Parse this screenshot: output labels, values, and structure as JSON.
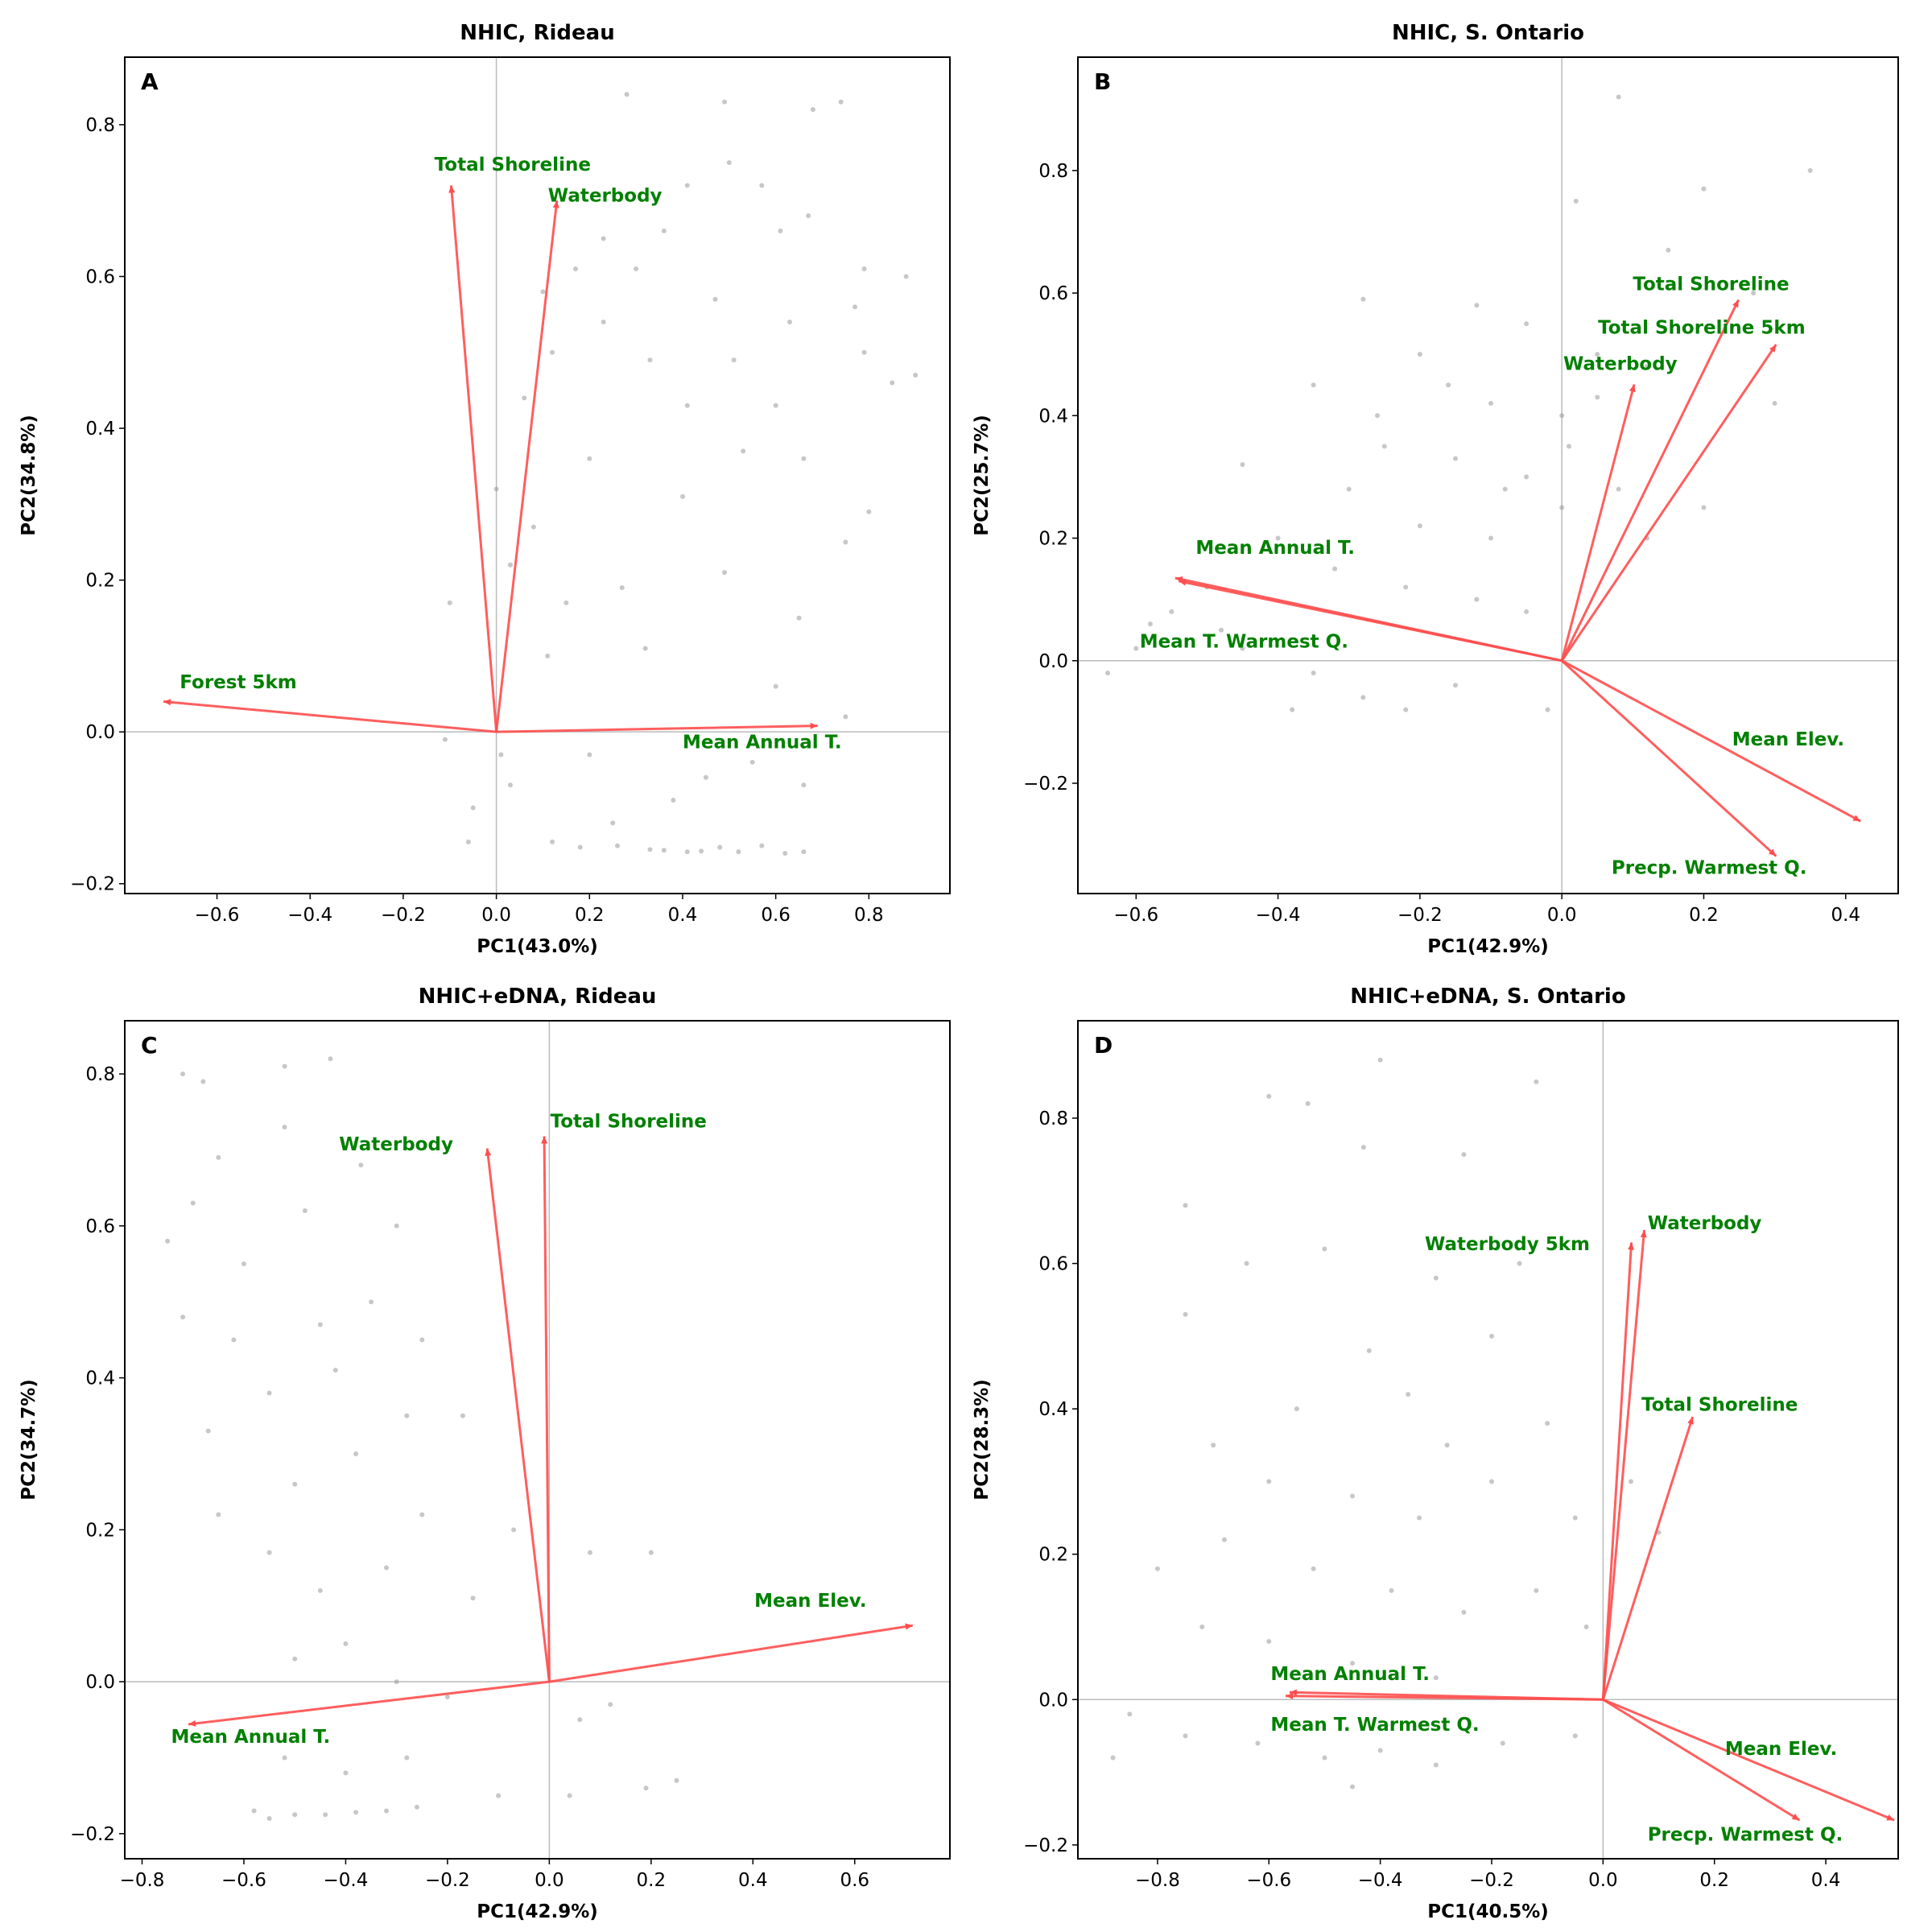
{
  "chart_data": [
    {
      "type": "scatter",
      "panel": "A",
      "title": "NHIC, Rideau",
      "xlabel": "PC1(43.0%)",
      "ylabel": "PC2(34.8%)",
      "xlim": [
        -0.798,
        0.974
      ],
      "ylim": [
        -0.213,
        0.889
      ],
      "xticks": [
        -0.6,
        -0.4,
        -0.2,
        0.0,
        0.2,
        0.4,
        0.6,
        0.8
      ],
      "yticks": [
        -0.2,
        0.0,
        0.2,
        0.4,
        0.6,
        0.8
      ],
      "point_color": "#999999",
      "arrow_color": "#ff4d4d",
      "label_color": "#008000",
      "points": [
        [
          0.28,
          0.84
        ],
        [
          0.49,
          0.83
        ],
        [
          0.74,
          0.83
        ],
        [
          0.68,
          0.82
        ],
        [
          0.5,
          0.75
        ],
        [
          0.41,
          0.72
        ],
        [
          0.57,
          0.72
        ],
        [
          0.67,
          0.68
        ],
        [
          0.36,
          0.66
        ],
        [
          0.61,
          0.66
        ],
        [
          0.17,
          0.61
        ],
        [
          0.3,
          0.61
        ],
        [
          0.88,
          0.6
        ],
        [
          0.79,
          0.61
        ],
        [
          0.47,
          0.57
        ],
        [
          0.23,
          0.54
        ],
        [
          0.63,
          0.54
        ],
        [
          0.77,
          0.56
        ],
        [
          0.12,
          0.5
        ],
        [
          0.51,
          0.49
        ],
        [
          0.79,
          0.5
        ],
        [
          0.9,
          0.47
        ],
        [
          0.85,
          0.46
        ],
        [
          0.33,
          0.49
        ],
        [
          0.06,
          0.44
        ],
        [
          0.41,
          0.43
        ],
        [
          0.6,
          0.43
        ],
        [
          0.2,
          0.36
        ],
        [
          0.53,
          0.37
        ],
        [
          0.66,
          0.36
        ],
        [
          0.8,
          0.29
        ],
        [
          0.08,
          0.27
        ],
        [
          0.4,
          0.31
        ],
        [
          0.75,
          0.25
        ],
        [
          0.03,
          0.22
        ],
        [
          0.27,
          0.19
        ],
        [
          0.49,
          0.21
        ],
        [
          -0.1,
          0.17
        ],
        [
          0.15,
          0.17
        ],
        [
          0.65,
          0.15
        ],
        [
          0.32,
          0.11
        ],
        [
          0.11,
          0.1
        ],
        [
          0.6,
          0.06
        ],
        [
          0.75,
          0.02
        ],
        [
          -0.11,
          -0.01
        ],
        [
          0.45,
          -0.06
        ],
        [
          0.01,
          -0.03
        ],
        [
          0.2,
          -0.03
        ],
        [
          0.55,
          -0.04
        ],
        [
          0.66,
          -0.07
        ],
        [
          0.03,
          -0.07
        ],
        [
          0.38,
          -0.09
        ],
        [
          -0.05,
          -0.1
        ],
        [
          0.25,
          -0.12
        ],
        [
          -0.06,
          -0.145
        ],
        [
          0.12,
          -0.145
        ],
        [
          0.18,
          -0.152
        ],
        [
          0.26,
          -0.15
        ],
        [
          0.33,
          -0.155
        ],
        [
          0.36,
          -0.156
        ],
        [
          0.41,
          -0.158
        ],
        [
          0.44,
          -0.157
        ],
        [
          0.48,
          -0.152
        ],
        [
          0.52,
          -0.158
        ],
        [
          0.57,
          -0.15
        ],
        [
          0.62,
          -0.16
        ],
        [
          0.66,
          -0.158
        ],
        [
          0.0,
          0.32
        ],
        [
          0.1,
          0.58
        ],
        [
          0.23,
          0.65
        ]
      ],
      "loadings": [
        {
          "name": "Total Shoreline",
          "x": -0.097,
          "y": 0.72,
          "label_xy": [
            -0.133,
            0.748
          ]
        },
        {
          "name": "Waterbody",
          "x": 0.13,
          "y": 0.7,
          "label_xy": [
            0.111,
            0.707
          ]
        },
        {
          "name": "Forest 5km",
          "x": -0.715,
          "y": 0.04,
          "label_xy": [
            -0.68,
            0.066
          ]
        },
        {
          "name": "Mean Annual T.",
          "x": 0.69,
          "y": 0.008,
          "label_xy": [
            0.4,
            -0.013
          ]
        }
      ]
    },
    {
      "type": "scatter",
      "panel": "B",
      "title": "NHIC, S. Ontario",
      "xlabel": "PC1(42.9%)",
      "ylabel": "PC2(25.7%)",
      "xlim": [
        -0.682,
        0.474
      ],
      "ylim": [
        -0.38,
        0.985
      ],
      "xticks": [
        -0.6,
        -0.4,
        -0.2,
        0.0,
        0.2,
        0.4
      ],
      "yticks": [
        -0.2,
        0.0,
        0.2,
        0.4,
        0.6,
        0.8
      ],
      "point_color": "#999999",
      "arrow_color": "#ff4d4d",
      "label_color": "#008000",
      "points": [
        [
          0.08,
          0.92
        ],
        [
          0.35,
          0.8
        ],
        [
          0.02,
          0.75
        ],
        [
          0.2,
          0.77
        ],
        [
          -0.28,
          0.59
        ],
        [
          -0.12,
          0.58
        ],
        [
          0.15,
          0.67
        ],
        [
          0.27,
          0.6
        ],
        [
          -0.05,
          0.55
        ],
        [
          0.05,
          0.5
        ],
        [
          0.12,
          0.48
        ],
        [
          -0.35,
          0.45
        ],
        [
          -0.2,
          0.5
        ],
        [
          -0.1,
          0.42
        ],
        [
          0.0,
          0.4
        ],
        [
          0.3,
          0.42
        ],
        [
          -0.25,
          0.35
        ],
        [
          -0.15,
          0.33
        ],
        [
          -0.05,
          0.3
        ],
        [
          0.08,
          0.28
        ],
        [
          -0.45,
          0.32
        ],
        [
          -0.3,
          0.28
        ],
        [
          -0.2,
          0.22
        ],
        [
          -0.1,
          0.2
        ],
        [
          0.0,
          0.25
        ],
        [
          0.12,
          0.2
        ],
        [
          0.2,
          0.25
        ],
        [
          -0.4,
          0.2
        ],
        [
          -0.32,
          0.15
        ],
        [
          -0.22,
          0.12
        ],
        [
          -0.12,
          0.1
        ],
        [
          -0.05,
          0.08
        ],
        [
          -0.5,
          0.12
        ],
        [
          -0.55,
          0.08
        ],
        [
          -0.6,
          0.02
        ],
        [
          -0.64,
          -0.02
        ],
        [
          -0.45,
          0.02
        ],
        [
          -0.35,
          -0.02
        ],
        [
          -0.28,
          -0.06
        ],
        [
          -0.22,
          -0.08
        ],
        [
          -0.15,
          -0.04
        ],
        [
          -0.38,
          -0.08
        ],
        [
          -0.02,
          -0.08
        ],
        [
          -0.48,
          0.05
        ],
        [
          -0.58,
          0.06
        ],
        [
          -0.26,
          0.4
        ],
        [
          -0.16,
          0.45
        ],
        [
          0.01,
          0.35
        ],
        [
          0.05,
          0.43
        ],
        [
          -0.08,
          0.28
        ]
      ],
      "loadings": [
        {
          "name": "Total Shoreline",
          "x": 0.249,
          "y": 0.589,
          "label_xy": [
            0.1,
            0.615
          ]
        },
        {
          "name": "Total Shoreline 5km",
          "x": 0.302,
          "y": 0.516,
          "label_xy": [
            0.051,
            0.544
          ]
        },
        {
          "name": "Waterbody",
          "x": 0.102,
          "y": 0.451,
          "label_xy": [
            0.002,
            0.485
          ]
        },
        {
          "name": "Mean Annual T.",
          "x": -0.545,
          "y": 0.135,
          "label_xy": [
            -0.516,
            0.185
          ]
        },
        {
          "name": "Mean T. Warmest Q.",
          "x": -0.54,
          "y": 0.13,
          "label_xy": [
            -0.595,
            0.032
          ]
        },
        {
          "name": "Mean Elev.",
          "x": 0.421,
          "y": -0.262,
          "label_xy": [
            0.24,
            -0.128
          ]
        },
        {
          "name": "Precp. Warmest Q.",
          "x": 0.302,
          "y": -0.319,
          "label_xy": [
            0.07,
            -0.337
          ]
        }
      ]
    },
    {
      "type": "scatter",
      "panel": "C",
      "title": "NHIC+eDNA, Rideau",
      "xlabel": "PC1(42.9%)",
      "ylabel": "PC2(34.7%)",
      "xlim": [
        -0.834,
        0.787
      ],
      "ylim": [
        -0.233,
        0.87
      ],
      "xticks": [
        -0.8,
        -0.6,
        -0.4,
        -0.2,
        0.0,
        0.2,
        0.4,
        0.6
      ],
      "yticks": [
        -0.2,
        0.0,
        0.2,
        0.4,
        0.6,
        0.8
      ],
      "point_color": "#999999",
      "arrow_color": "#ff4d4d",
      "label_color": "#008000",
      "points": [
        [
          -0.72,
          0.8
        ],
        [
          -0.68,
          0.79
        ],
        [
          -0.52,
          0.81
        ],
        [
          -0.43,
          0.82
        ],
        [
          -0.7,
          0.63
        ],
        [
          -0.65,
          0.69
        ],
        [
          -0.52,
          0.73
        ],
        [
          -0.37,
          0.68
        ],
        [
          -0.75,
          0.58
        ],
        [
          -0.6,
          0.55
        ],
        [
          -0.48,
          0.62
        ],
        [
          -0.3,
          0.6
        ],
        [
          -0.72,
          0.48
        ],
        [
          -0.62,
          0.45
        ],
        [
          -0.45,
          0.47
        ],
        [
          -0.35,
          0.5
        ],
        [
          -0.25,
          0.45
        ],
        [
          -0.67,
          0.33
        ],
        [
          -0.55,
          0.38
        ],
        [
          -0.42,
          0.41
        ],
        [
          -0.28,
          0.35
        ],
        [
          -0.17,
          0.35
        ],
        [
          -0.65,
          0.22
        ],
        [
          -0.5,
          0.26
        ],
        [
          -0.38,
          0.3
        ],
        [
          -0.25,
          0.22
        ],
        [
          -0.55,
          0.17
        ],
        [
          -0.45,
          0.12
        ],
        [
          -0.32,
          0.15
        ],
        [
          -0.15,
          0.11
        ],
        [
          -0.07,
          0.2
        ],
        [
          0.08,
          0.17
        ],
        [
          0.2,
          0.17
        ],
        [
          -0.5,
          0.03
        ],
        [
          -0.4,
          0.05
        ],
        [
          -0.3,
          0.0
        ],
        [
          -0.2,
          -0.02
        ],
        [
          0.12,
          -0.03
        ],
        [
          0.06,
          -0.05
        ],
        [
          -0.52,
          -0.1
        ],
        [
          -0.4,
          -0.12
        ],
        [
          -0.28,
          -0.1
        ],
        [
          -0.1,
          -0.15
        ],
        [
          0.04,
          -0.15
        ],
        [
          0.25,
          -0.13
        ],
        [
          0.19,
          -0.14
        ],
        [
          -0.55,
          -0.18
        ],
        [
          -0.5,
          -0.175
        ],
        [
          -0.44,
          -0.175
        ],
        [
          -0.38,
          -0.172
        ],
        [
          -0.32,
          -0.17
        ],
        [
          -0.26,
          -0.165
        ],
        [
          -0.58,
          -0.17
        ]
      ],
      "loadings": [
        {
          "name": "Waterbody",
          "x": -0.122,
          "y": 0.702,
          "label_xy": [
            -0.413,
            0.708
          ]
        },
        {
          "name": "Total Shoreline",
          "x": -0.01,
          "y": 0.718,
          "label_xy": [
            0.002,
            0.738
          ]
        },
        {
          "name": "Mean Elev.",
          "x": 0.714,
          "y": 0.074,
          "label_xy": [
            0.403,
            0.107
          ]
        },
        {
          "name": "Mean Annual T.",
          "x": -0.709,
          "y": -0.056,
          "label_xy": [
            -0.743,
            -0.072
          ]
        }
      ]
    },
    {
      "type": "scatter",
      "panel": "D",
      "title": "NHIC+eDNA, S. Ontario",
      "xlabel": "PC1(40.5%)",
      "ylabel": "PC2(28.3%)",
      "xlim": [
        -0.943,
        0.53
      ],
      "ylim": [
        -0.219,
        0.934
      ],
      "xticks": [
        -0.8,
        -0.6,
        -0.4,
        -0.2,
        0.0,
        0.2,
        0.4
      ],
      "yticks": [
        -0.2,
        0.0,
        0.2,
        0.4,
        0.6,
        0.8
      ],
      "point_color": "#999999",
      "arrow_color": "#ff4d4d",
      "label_color": "#008000",
      "points": [
        [
          -0.4,
          0.88
        ],
        [
          -0.12,
          0.85
        ],
        [
          -0.6,
          0.83
        ],
        [
          -0.53,
          0.82
        ],
        [
          -0.43,
          0.76
        ],
        [
          -0.25,
          0.75
        ],
        [
          -0.75,
          0.68
        ],
        [
          -0.64,
          0.6
        ],
        [
          -0.5,
          0.62
        ],
        [
          -0.3,
          0.58
        ],
        [
          -0.15,
          0.6
        ],
        [
          -0.2,
          0.5
        ],
        [
          -0.42,
          0.48
        ],
        [
          -0.35,
          0.42
        ],
        [
          -0.55,
          0.4
        ],
        [
          -0.7,
          0.35
        ],
        [
          -0.28,
          0.35
        ],
        [
          -0.1,
          0.38
        ],
        [
          -0.6,
          0.3
        ],
        [
          -0.45,
          0.28
        ],
        [
          -0.33,
          0.25
        ],
        [
          -0.2,
          0.3
        ],
        [
          -0.05,
          0.25
        ],
        [
          0.1,
          0.23
        ],
        [
          -0.8,
          0.18
        ],
        [
          -0.68,
          0.22
        ],
        [
          -0.52,
          0.18
        ],
        [
          -0.38,
          0.15
        ],
        [
          -0.25,
          0.12
        ],
        [
          -0.12,
          0.15
        ],
        [
          -0.72,
          0.1
        ],
        [
          -0.6,
          0.08
        ],
        [
          -0.45,
          0.05
        ],
        [
          -0.3,
          0.03
        ],
        [
          -0.85,
          -0.02
        ],
        [
          -0.75,
          -0.05
        ],
        [
          -0.62,
          -0.06
        ],
        [
          -0.5,
          -0.08
        ],
        [
          -0.4,
          -0.07
        ],
        [
          -0.3,
          -0.09
        ],
        [
          -0.18,
          -0.06
        ],
        [
          -0.05,
          -0.05
        ],
        [
          -0.88,
          -0.08
        ],
        [
          -0.45,
          -0.12
        ],
        [
          -0.75,
          0.53
        ],
        [
          -0.03,
          0.1
        ],
        [
          0.05,
          0.3
        ]
      ],
      "loadings": [
        {
          "name": "Waterbody 5km",
          "x": 0.051,
          "y": 0.629,
          "label_xy": [
            -0.32,
            0.627
          ]
        },
        {
          "name": "Waterbody",
          "x": 0.074,
          "y": 0.646,
          "label_xy": [
            0.08,
            0.656
          ]
        },
        {
          "name": "Total Shoreline",
          "x": 0.161,
          "y": 0.389,
          "label_xy": [
            0.069,
            0.406
          ]
        },
        {
          "name": "Mean Annual T.",
          "x": -0.563,
          "y": 0.01,
          "label_xy": [
            -0.597,
            0.036
          ]
        },
        {
          "name": "Mean T. Warmest Q.",
          "x": -0.57,
          "y": 0.005,
          "label_xy": [
            -0.597,
            -0.034
          ]
        },
        {
          "name": "Mean Elev.",
          "x": 0.523,
          "y": -0.166,
          "label_xy": [
            0.219,
            -0.067
          ]
        },
        {
          "name": "Precp. Warmest Q.",
          "x": 0.353,
          "y": -0.166,
          "label_xy": [
            0.08,
            -0.185
          ]
        }
      ]
    }
  ]
}
